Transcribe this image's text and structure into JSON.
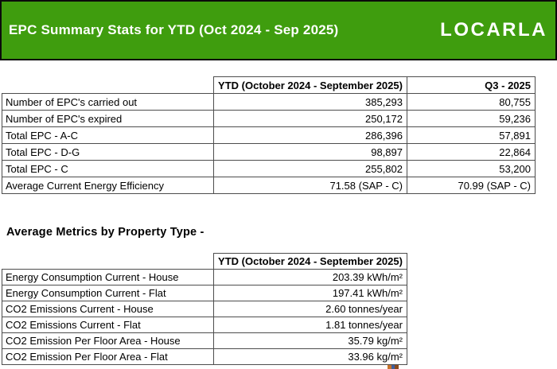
{
  "banner": {
    "title": "EPC Summary Stats for YTD (Oct 2024 - Sep 2025)",
    "logo": "LOCARLA",
    "background_color": "#3f9d0e",
    "border_color": "#0b0b0b",
    "text_color": "#ffffff"
  },
  "summary_table": {
    "header_ytd": "YTD (October 2024 - September 2025)",
    "header_q3": "Q3 - 2025",
    "rows": [
      {
        "label": "Number of EPC's carried out",
        "ytd": "385,293",
        "q3": "80,755"
      },
      {
        "label": "Number of EPC's expired",
        "ytd": "250,172",
        "q3": "59,236"
      },
      {
        "label": "Total EPC - A-C",
        "ytd": "286,396",
        "q3": "57,891"
      },
      {
        "label": "Total EPC - D-G",
        "ytd": "98,897",
        "q3": "22,864"
      },
      {
        "label": "Total EPC - C",
        "ytd": "255,802",
        "q3": "53,200"
      },
      {
        "label": "Average Current Energy Efficiency",
        "ytd": "71.58 (SAP - C)",
        "q3": "70.99 (SAP - C)"
      }
    ]
  },
  "section_title": "Average Metrics by Property Type -",
  "metrics_table": {
    "header_ytd": "YTD (October 2024 - September 2025)",
    "rows": [
      {
        "label": "Energy Consumption Current - House",
        "ytd": "203.39 kWh/m²"
      },
      {
        "label": "Energy Consumption Current - Flat",
        "ytd": "197.41 kWh/m²"
      },
      {
        "label": "CO2 Emissions Current - House",
        "ytd": "2.60 tonnes/year"
      },
      {
        "label": "CO2 Emissions Current - Flat",
        "ytd": "1.81 tonnes/year"
      },
      {
        "label": "CO2 Emission Per Floor Area - House",
        "ytd": "35.79 kg/m²"
      },
      {
        "label": "CO2 Emission Per Floor Area - Flat",
        "ytd": "33.96 kg/m²"
      }
    ]
  }
}
